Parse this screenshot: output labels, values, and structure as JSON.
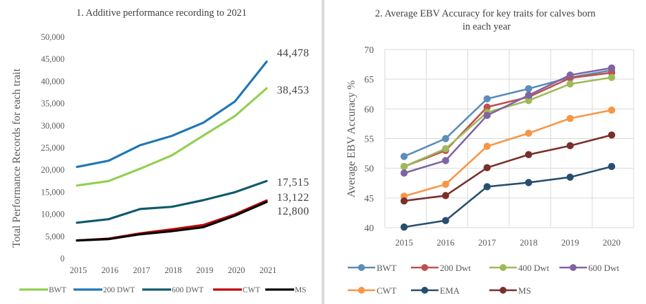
{
  "chart_data": [
    {
      "type": "line",
      "title_number": "1",
      "title": "Additive performance recording to 2021",
      "xlabel": "",
      "ylabel": "Total Performance Records for each trait",
      "x": [
        "2015",
        "2016",
        "2017",
        "2018",
        "2019",
        "2020",
        "2021"
      ],
      "ylim": [
        0,
        50000
      ],
      "yticks": [
        "0",
        "5,000",
        "10,000",
        "15,000",
        "20,000",
        "25,000",
        "30,000",
        "35,000",
        "40,000",
        "45,000",
        "50,000"
      ],
      "grid": false,
      "legend_position": "bottom",
      "series": [
        {
          "name": "BWT",
          "color": "#92d050",
          "values": [
            16500,
            17500,
            20300,
            23300,
            27800,
            32200,
            38453
          ]
        },
        {
          "name": "200 DWT",
          "color": "#1f77b4",
          "values": [
            20700,
            22100,
            25600,
            27700,
            30700,
            35500,
            44478
          ]
        },
        {
          "name": "600 DWT",
          "color": "#0e5a6b",
          "values": [
            8100,
            8900,
            11200,
            11700,
            13200,
            15000,
            17515
          ]
        },
        {
          "name": "CWT",
          "color": "#c00000",
          "values": [
            4100,
            4500,
            5700,
            6600,
            7600,
            10000,
            13122
          ]
        },
        {
          "name": "MS",
          "color": "#000000",
          "values": [
            4100,
            4400,
            5500,
            6200,
            7100,
            9700,
            12800
          ]
        }
      ],
      "annotations": [
        "44,478",
        "38,453",
        "17,515",
        "13,122",
        "12,800"
      ]
    },
    {
      "type": "line",
      "title_number": "2",
      "title": "Average EBV Accuracy for key traits for calves born in each year",
      "xlabel": "",
      "ylabel": "Average EBV Accuracy %",
      "x": [
        "2015",
        "2016",
        "2017",
        "2018",
        "2019",
        "2020"
      ],
      "ylim": [
        40,
        70
      ],
      "yticks": [
        "40",
        "45",
        "50",
        "55",
        "60",
        "65",
        "70"
      ],
      "grid": true,
      "legend_position": "bottom",
      "series": [
        {
          "name": "BWT",
          "color": "#5b8db8",
          "values": [
            52,
            55,
            61.7,
            63.4,
            65.3,
            66.5
          ]
        },
        {
          "name": "200 Dwt",
          "color": "#c0504d",
          "values": [
            50.3,
            53,
            60.3,
            62,
            65.2,
            66.1
          ]
        },
        {
          "name": "400 Dwt",
          "color": "#9bbb59",
          "values": [
            50.3,
            53.3,
            59.4,
            61.4,
            64.2,
            65.3
          ]
        },
        {
          "name": "600 Dwt",
          "color": "#8064a2",
          "values": [
            49.2,
            51.3,
            58.9,
            62.3,
            65.7,
            66.9
          ]
        },
        {
          "name": "CWT",
          "color": "#f79646",
          "values": [
            45.3,
            47.3,
            53.7,
            55.9,
            58.4,
            59.8
          ]
        },
        {
          "name": "EMA",
          "color": "#284e6e",
          "values": [
            40.1,
            41.2,
            46.9,
            47.6,
            48.5,
            50.3
          ]
        },
        {
          "name": "MS",
          "color": "#77302c",
          "values": [
            44.5,
            45.4,
            50.1,
            52.3,
            53.8,
            55.6
          ]
        }
      ]
    }
  ]
}
